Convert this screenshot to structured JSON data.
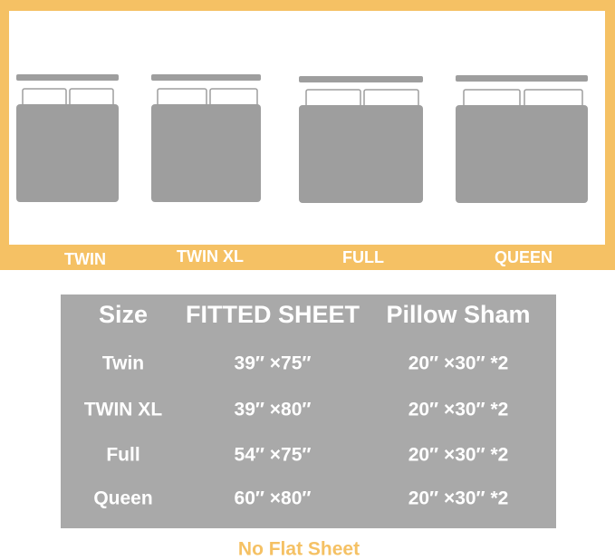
{
  "bed_labels": [
    "TWIN",
    "TWIN XL",
    "FULL",
    "QUEEN"
  ],
  "table": {
    "header": [
      "Size",
      "FITTED SHEET",
      "Pillow Sham"
    ],
    "rows": [
      [
        "Twin",
        "39″ ×75″",
        "20″ ×30″ *2"
      ],
      [
        "TWIN XL",
        "39″ ×80″",
        "20″ ×30″ *2"
      ],
      [
        "Full",
        "54″ ×75″",
        "20″ ×30″ *2"
      ],
      [
        "Queen",
        "60″ ×80″",
        "20″ ×30″ *2"
      ]
    ]
  },
  "footer": "No Flat Sheet"
}
